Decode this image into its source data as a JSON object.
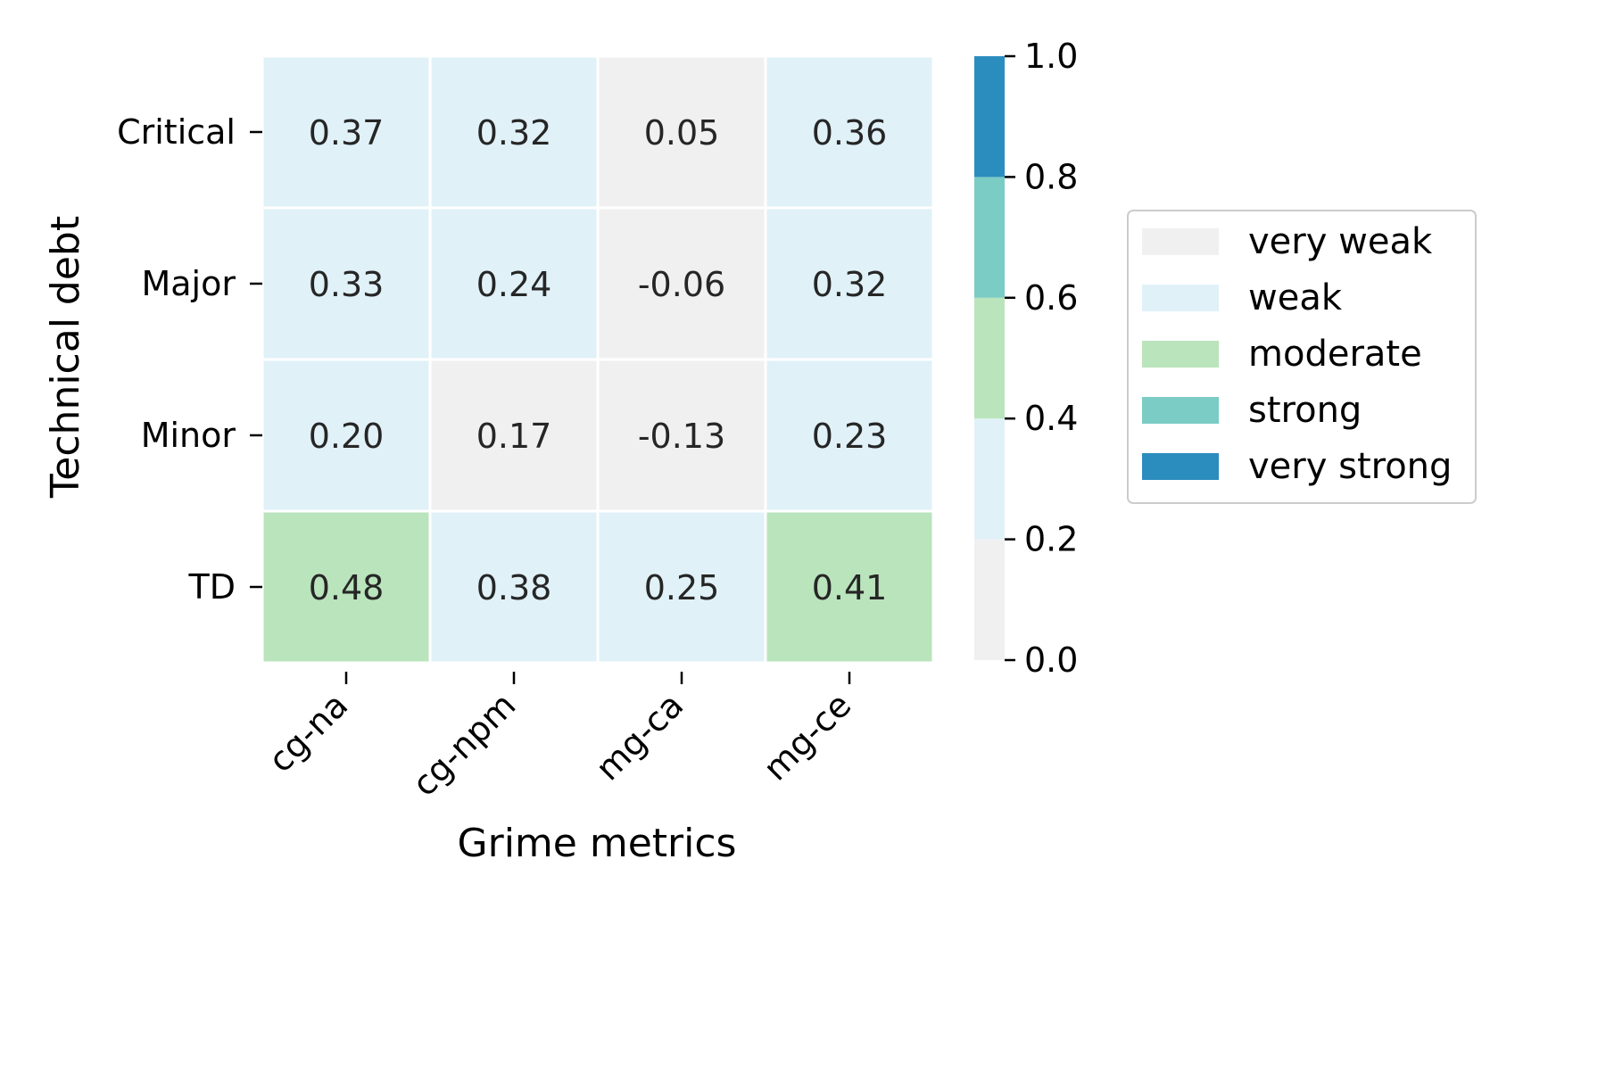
{
  "chart_data": {
    "type": "heatmap",
    "title": "",
    "xlabel": "Grime metrics",
    "ylabel": "Technical debt",
    "x_categories": [
      "cg-na",
      "cg-npm",
      "mg-ca",
      "mg-ce"
    ],
    "y_categories": [
      "Critical",
      "Major",
      "Minor",
      "TD"
    ],
    "values": [
      [
        0.37,
        0.32,
        0.05,
        0.36
      ],
      [
        0.33,
        0.24,
        -0.06,
        0.32
      ],
      [
        0.2,
        0.17,
        -0.13,
        0.23
      ],
      [
        0.48,
        0.38,
        0.25,
        0.41
      ]
    ],
    "value_labels": [
      [
        "0.37",
        "0.32",
        "0.05",
        "0.36"
      ],
      [
        "0.33",
        "0.24",
        "-0.06",
        "0.32"
      ],
      [
        "0.20",
        "0.17",
        "-0.13",
        "0.23"
      ],
      [
        "0.48",
        "0.38",
        "0.25",
        "0.41"
      ]
    ],
    "colorbar": {
      "range": [
        0.0,
        1.0
      ],
      "ticks": [
        "0.0",
        "0.2",
        "0.4",
        "0.6",
        "0.8",
        "1.0"
      ],
      "bins": [
        {
          "from": 0.0,
          "to": 0.2,
          "color": "#f0f0f0"
        },
        {
          "from": 0.2,
          "to": 0.4,
          "color": "#e0f1f8"
        },
        {
          "from": 0.4,
          "to": 0.6,
          "color": "#bae4bc"
        },
        {
          "from": 0.6,
          "to": 0.8,
          "color": "#7bccc4"
        },
        {
          "from": 0.8,
          "to": 1.0,
          "color": "#2b8cbe"
        }
      ]
    },
    "legend": {
      "placement": "right",
      "items": [
        {
          "label": "very weak",
          "color": "#f0f0f0"
        },
        {
          "label": "weak",
          "color": "#e0f1f8"
        },
        {
          "label": "moderate",
          "color": "#bae4bc"
        },
        {
          "label": "strong",
          "color": "#7bccc4"
        },
        {
          "label": "very strong",
          "color": "#2b8cbe"
        }
      ]
    },
    "grid": false
  }
}
